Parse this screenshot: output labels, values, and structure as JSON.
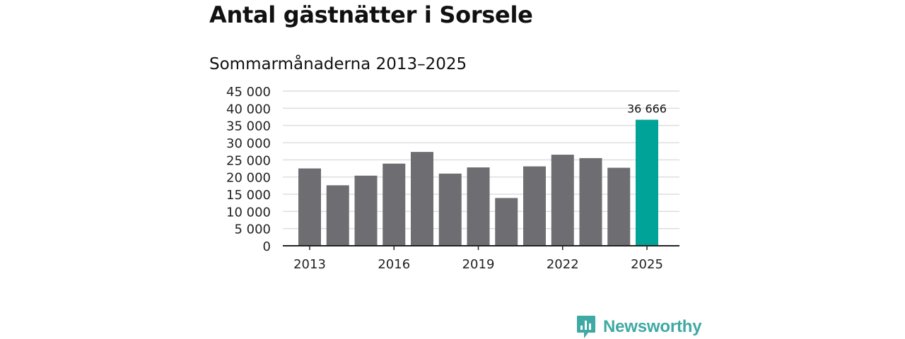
{
  "page": {
    "title": "Antal gästnätter i Sorsele",
    "subtitle": "Sommarmånaderna 2013–2025"
  },
  "brand": {
    "name": "Newsworthy",
    "icon": "newsworthy-logo-icon",
    "color": "#3fa9a3"
  },
  "chart_data": {
    "type": "bar",
    "categories": [
      "2013",
      "2014",
      "2015",
      "2016",
      "2017",
      "2018",
      "2019",
      "2020",
      "2021",
      "2022",
      "2023",
      "2024",
      "2025"
    ],
    "values": [
      22500,
      17600,
      20400,
      23900,
      27300,
      21000,
      22800,
      13900,
      23100,
      26500,
      25500,
      22700,
      36666
    ],
    "x_tick_labels": [
      "2013",
      "2016",
      "2019",
      "2022",
      "2025"
    ],
    "y_ticks": [
      0,
      5000,
      10000,
      15000,
      20000,
      25000,
      30000,
      35000,
      40000,
      45000
    ],
    "y_tick_labels": [
      "0",
      "5 000",
      "10 000",
      "15 000",
      "20 000",
      "25 000",
      "30 000",
      "35 000",
      "40 000",
      "45 000"
    ],
    "ylim": [
      0,
      45000
    ],
    "grid": true,
    "bar_color": "#6e6d72",
    "highlight_color": "#00a398",
    "highlight_category": "2025",
    "annotation": {
      "category": "2025",
      "text": "36 666"
    }
  }
}
